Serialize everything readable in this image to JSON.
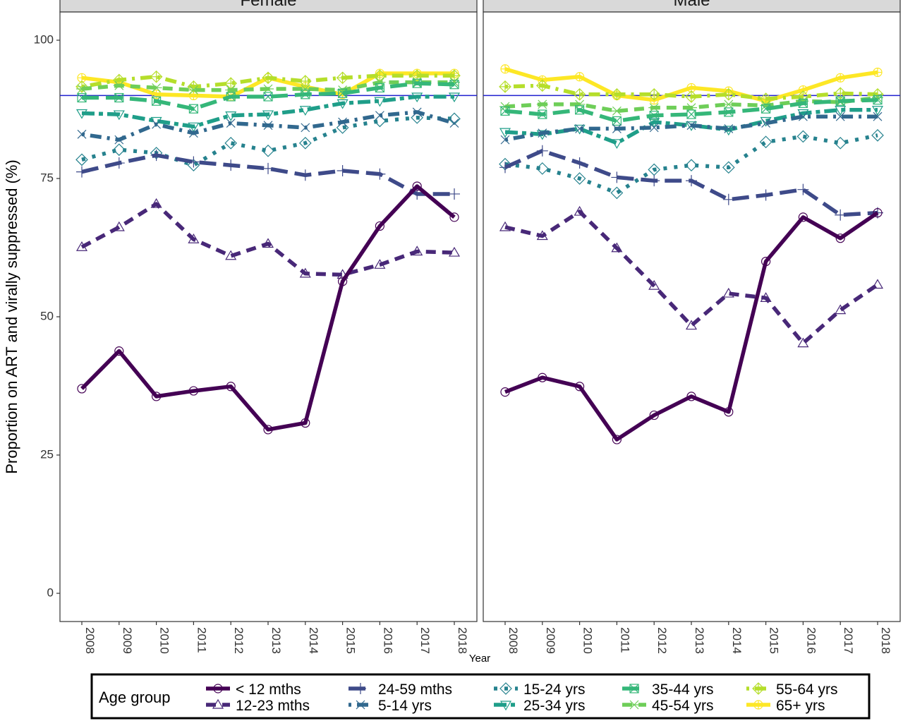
{
  "chart_data": {
    "type": "line",
    "ylabel": "Proportion on ART and virally suppressed (%)",
    "xlabel": "Year",
    "ylim": [
      -5,
      105
    ],
    "y_ticks": [
      "0",
      "25",
      "50",
      "75",
      "100"
    ],
    "x": [
      "2008",
      "2009",
      "2010",
      "2011",
      "2012",
      "2013",
      "2014",
      "2015",
      "2016",
      "2017",
      "2018"
    ],
    "reference_line": 90,
    "reference_color": "#1f1fcf",
    "grid": false,
    "legend": {
      "title": "Age group",
      "position": "bottom"
    },
    "series_styles": [
      {
        "color": "#440154",
        "dash": "solid",
        "marker": "circle"
      },
      {
        "color": "#482878",
        "dash": "dash",
        "marker": "triangle"
      },
      {
        "color": "#3e4a89",
        "dash": "longdash",
        "marker": "plus"
      },
      {
        "color": "#31688e",
        "dash": "dotdash",
        "marker": "x"
      },
      {
        "color": "#26828e",
        "dash": "dotdash2",
        "marker": "diamond"
      },
      {
        "color": "#1f9e89",
        "dash": "twodash",
        "marker": "triangle-down"
      },
      {
        "color": "#35b779",
        "dash": "longdash",
        "marker": "square-x"
      },
      {
        "color": "#6ece58",
        "dash": "dash",
        "marker": "asterisk"
      },
      {
        "color": "#b5de2b",
        "dash": "dotdash",
        "marker": "diamond-plus"
      },
      {
        "color": "#fde725",
        "dash": "solid",
        "marker": "circle-plus"
      }
    ],
    "panels": [
      {
        "name": "Female",
        "series": [
          {
            "name": "< 12 mths",
            "values": [
              37,
              43.8,
              35.6,
              36.6,
              37.4,
              29.6,
              30.8,
              56.4,
              66.4,
              73.6,
              68
            ]
          },
          {
            "name": "12-23 mths",
            "values": [
              62.6,
              66.2,
              70.4,
              64,
              61,
              63.2,
              57.8,
              57.6,
              59.4,
              61.8,
              61.6
            ]
          },
          {
            "name": "24-59 mths",
            "values": [
              76.2,
              77.8,
              79.2,
              78,
              77.4,
              76.8,
              75.6,
              76.4,
              75.8,
              72.2,
              72.2
            ]
          },
          {
            "name": "5-14 yrs",
            "values": [
              83,
              82,
              84.8,
              83.2,
              85,
              84.6,
              84.2,
              85.2,
              86.4,
              87,
              85
            ]
          },
          {
            "name": "15-24 yrs",
            "values": [
              78.4,
              80.2,
              79.6,
              77.4,
              81.4,
              80,
              81.4,
              84.2,
              85.4,
              86,
              85.8
            ]
          },
          {
            "name": "25-34 yrs",
            "values": [
              86.8,
              86.6,
              85.4,
              84.4,
              86.4,
              86.6,
              87.4,
              88.6,
              89,
              89.8,
              89.8
            ]
          },
          {
            "name": "35-44 yrs",
            "values": [
              89.6,
              89.6,
              89,
              87.6,
              89.8,
              89.8,
              90.2,
              90.4,
              91.4,
              92.2,
              92
            ]
          },
          {
            "name": "45-54 yrs",
            "values": [
              91.2,
              91.8,
              91.4,
              91,
              91,
              91.2,
              91.2,
              91,
              92.4,
              92.4,
              92.4
            ]
          },
          {
            "name": "55-64 yrs",
            "values": [
              91.6,
              92.8,
              93.4,
              91.6,
              92.2,
              93.2,
              92.6,
              93.2,
              93.6,
              93.6,
              93.6
            ]
          },
          {
            "name": "65+ yrs",
            "values": [
              93.2,
              92.4,
              90.2,
              90,
              89.8,
              93.2,
              91.6,
              90.2,
              94,
              94,
              94
            ]
          }
        ]
      },
      {
        "name": "Male",
        "series": [
          {
            "name": "< 12 mths",
            "values": [
              36.4,
              39,
              37.4,
              27.8,
              32.2,
              35.6,
              32.8,
              60,
              68,
              64.2,
              68.8
            ]
          },
          {
            "name": "12-23 mths",
            "values": [
              66.2,
              64.6,
              69,
              62.4,
              55.6,
              48.4,
              54.2,
              53.4,
              45.2,
              51.2,
              55.8
            ]
          },
          {
            "name": "24-59 mths",
            "values": [
              77,
              80,
              77.8,
              75.2,
              74.6,
              74.6,
              71.2,
              72,
              73,
              68.4,
              68.8
            ]
          },
          {
            "name": "5-14 yrs",
            "values": [
              82,
              83.2,
              84,
              84,
              84.2,
              84.6,
              84,
              85,
              86.2,
              86.2,
              86.2
            ]
          },
          {
            "name": "15-24 yrs",
            "values": [
              77.6,
              76.8,
              75,
              72.4,
              76.6,
              77.4,
              77,
              81.6,
              82.6,
              81.4,
              82.8
            ]
          },
          {
            "name": "25-34 yrs",
            "values": [
              83.4,
              83,
              84,
              81.4,
              85.2,
              84.6,
              83.8,
              85.4,
              86.8,
              87.4,
              87.4
            ]
          },
          {
            "name": "35-44 yrs",
            "values": [
              87.2,
              86.6,
              87.4,
              85.4,
              86.4,
              86.6,
              87,
              87.6,
              88.6,
              89,
              89.2
            ]
          },
          {
            "name": "45-54 yrs",
            "values": [
              88,
              88.4,
              88.4,
              87.2,
              87.8,
              87.8,
              88.4,
              88.2,
              89,
              88.8,
              89.6
            ]
          },
          {
            "name": "55-64 yrs",
            "values": [
              91.6,
              91.8,
              90.2,
              90.2,
              90.2,
              89.8,
              90.2,
              89.4,
              89.8,
              90.4,
              90.2
            ]
          },
          {
            "name": "65+ yrs",
            "values": [
              94.8,
              92.8,
              93.4,
              90,
              89.2,
              91.4,
              90.8,
              89,
              91,
              93.2,
              94.2
            ]
          }
        ]
      }
    ]
  }
}
